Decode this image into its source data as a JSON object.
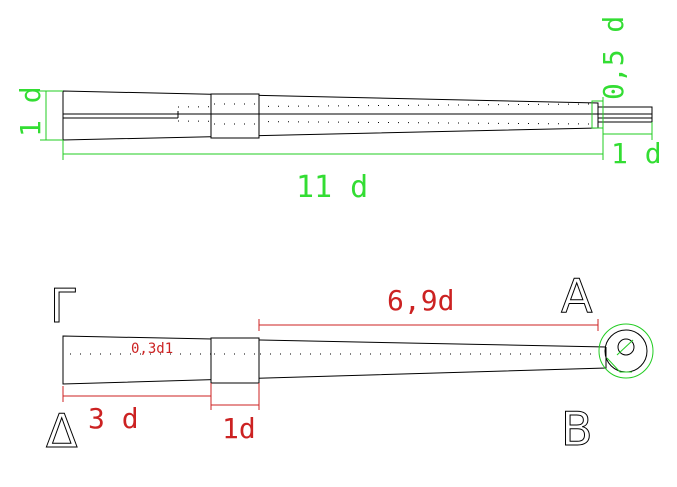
{
  "top_view": {
    "dim_height": "1 d",
    "dim_tip_height": "0,5 d",
    "dim_total_length": "11 d",
    "dim_tip_length": "1 d"
  },
  "bottom_view": {
    "corner_top_left": "Γ",
    "corner_bottom_left": "Δ",
    "corner_top_right": "A",
    "corner_bottom_right": "B",
    "dim_long": "6,9d",
    "dim_left": "3 d",
    "dim_ring": "1d",
    "dim_inner": "0,3d1"
  },
  "colors": {
    "dim_green": "#22cc22",
    "dim_red": "#cc2222"
  }
}
